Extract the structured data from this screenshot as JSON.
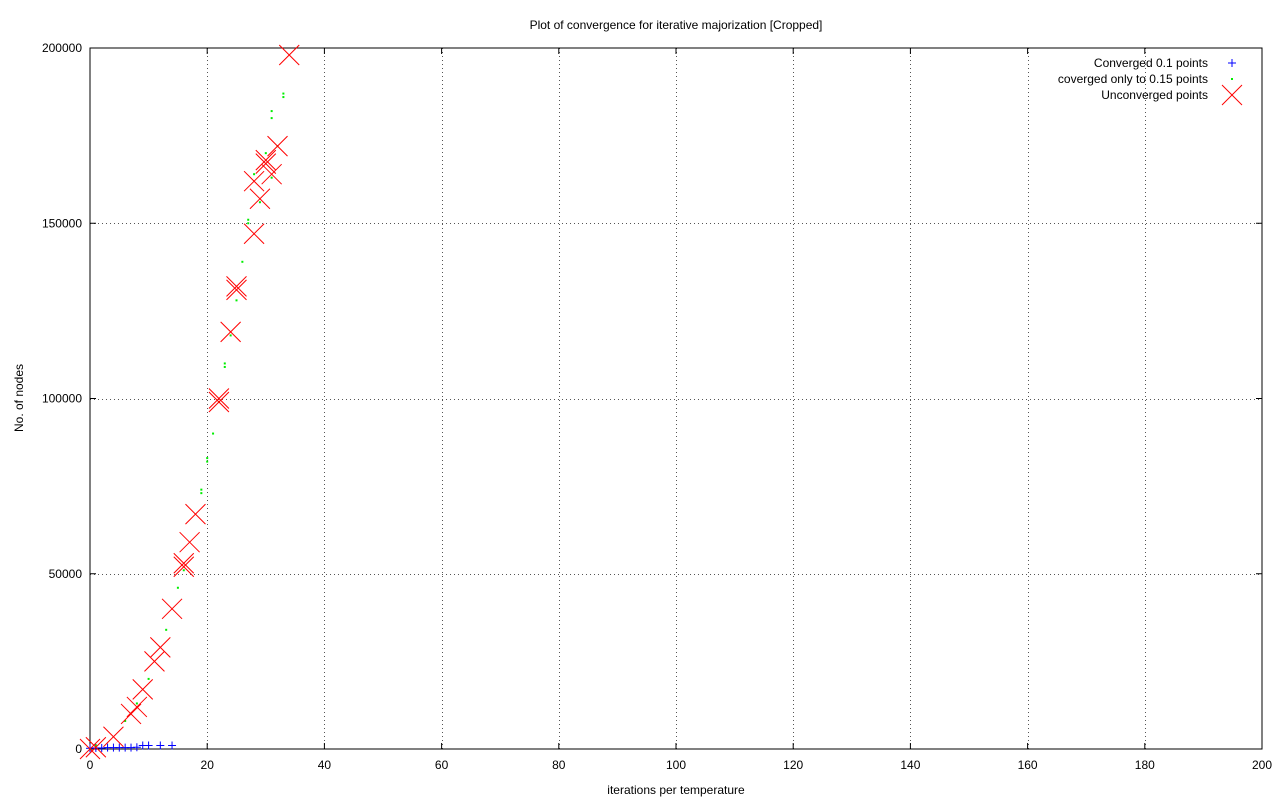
{
  "chart_data": {
    "type": "scatter",
    "title": "Plot of convergence for iterative majorization [Cropped]",
    "xlabel": "iterations per temperature",
    "ylabel": "No. of nodes",
    "xlim": [
      0,
      200
    ],
    "ylim": [
      0,
      200000
    ],
    "xticks": [
      0,
      20,
      40,
      60,
      80,
      100,
      120,
      140,
      160,
      180,
      200
    ],
    "yticks": [
      0,
      50000,
      100000,
      150000,
      200000
    ],
    "xtick_labels": [
      "0",
      "20",
      "40",
      "60",
      "80",
      "100",
      "120",
      "140",
      "160",
      "180",
      "200"
    ],
    "ytick_labels": [
      "0",
      "50000",
      "100000",
      "150000",
      "200000"
    ],
    "grid": true,
    "legend_position": "top-right",
    "series": [
      {
        "name": "Converged 0.1 points",
        "marker": "plus",
        "color": "#0000ff",
        "points": [
          [
            0,
            200
          ],
          [
            1,
            300
          ],
          [
            2,
            300
          ],
          [
            3,
            400
          ],
          [
            4,
            400
          ],
          [
            5,
            400
          ],
          [
            6,
            400
          ],
          [
            7,
            400
          ],
          [
            8,
            500
          ],
          [
            9,
            1000
          ],
          [
            10,
            1000
          ],
          [
            12,
            1000
          ],
          [
            14,
            1000
          ]
        ]
      },
      {
        "name": "coverged only to 0.15 points",
        "marker": "dot",
        "color": "#00ee00",
        "points": [
          [
            0,
            0
          ],
          [
            1,
            1000
          ],
          [
            6,
            8000
          ],
          [
            8,
            13000
          ],
          [
            10,
            20000
          ],
          [
            13,
            34000
          ],
          [
            15,
            46000
          ],
          [
            16,
            51000
          ],
          [
            19,
            73000
          ],
          [
            19,
            74000
          ],
          [
            20,
            82000
          ],
          [
            20,
            83000
          ],
          [
            21,
            90000
          ],
          [
            22,
            99000
          ],
          [
            23,
            109000
          ],
          [
            23,
            110000
          ],
          [
            24,
            118000
          ],
          [
            25,
            128000
          ],
          [
            26,
            139000
          ],
          [
            27,
            150000
          ],
          [
            27,
            151000
          ],
          [
            28,
            164000
          ],
          [
            29,
            156000
          ],
          [
            30,
            170000
          ],
          [
            31,
            163000
          ],
          [
            31,
            180000
          ],
          [
            31,
            182000
          ],
          [
            32,
            172000
          ],
          [
            33,
            186000
          ],
          [
            33,
            187000
          ]
        ]
      },
      {
        "name": "Unconverged points",
        "marker": "cross",
        "color": "#ff0000",
        "points": [
          [
            0,
            0
          ],
          [
            1,
            500
          ],
          [
            4,
            3500
          ],
          [
            7,
            10000
          ],
          [
            8,
            12000
          ],
          [
            9,
            17000
          ],
          [
            11,
            25000
          ],
          [
            12,
            29000
          ],
          [
            14,
            40000
          ],
          [
            16,
            52000
          ],
          [
            16,
            53000
          ],
          [
            17,
            59000
          ],
          [
            18,
            67000
          ],
          [
            22,
            99000
          ],
          [
            22,
            100000
          ],
          [
            24,
            119000
          ],
          [
            25,
            131000
          ],
          [
            25,
            132000
          ],
          [
            28,
            147000
          ],
          [
            28,
            162000
          ],
          [
            29,
            157000
          ],
          [
            30,
            167000
          ],
          [
            30,
            168000
          ],
          [
            31,
            164000
          ],
          [
            32,
            172000
          ],
          [
            34,
            198000
          ]
        ]
      }
    ]
  }
}
